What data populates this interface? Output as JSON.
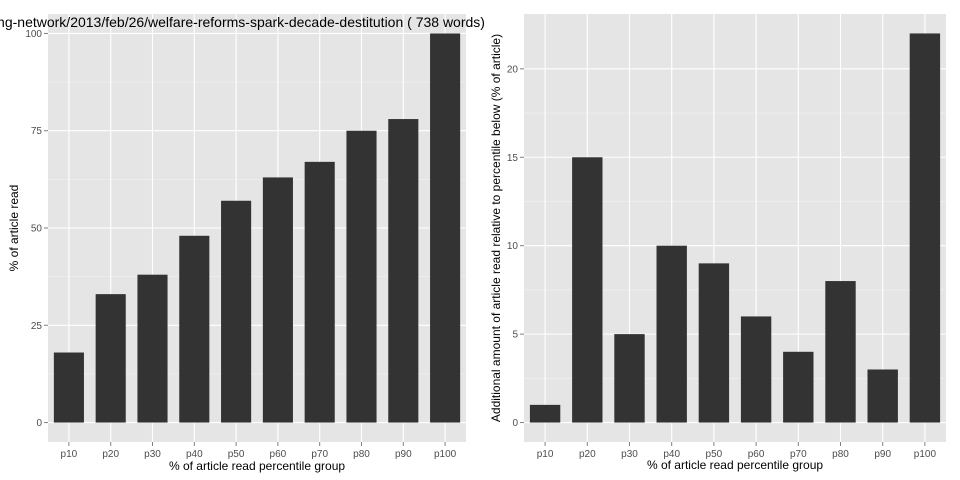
{
  "chart_data": [
    {
      "type": "bar",
      "title": "ng-network/2013/feb/26/welfare-reforms-spark-decade-destitution ( 738 words)",
      "xlabel": "% of article read percentile group",
      "ylabel": "% of article read",
      "categories": [
        "p10",
        "p20",
        "p30",
        "p40",
        "p50",
        "p60",
        "p70",
        "p80",
        "p90",
        "p100"
      ],
      "values": [
        18,
        33,
        38,
        48,
        57,
        63,
        67,
        75,
        78,
        100
      ],
      "ylim": [
        -5,
        105
      ],
      "yticks": [
        0,
        25,
        50,
        75,
        100
      ],
      "grid": true,
      "bar_color": "#333333",
      "panel_color": "#e5e5e5"
    },
    {
      "type": "bar",
      "title": "",
      "xlabel": "% of article read percentile group",
      "ylabel": "Additional amount of article read relative to percentile below (% of article)",
      "categories": [
        "p10",
        "p20",
        "p30",
        "p40",
        "p50",
        "p60",
        "p70",
        "p80",
        "p90",
        "p100"
      ],
      "values": [
        1,
        15,
        5,
        10,
        9,
        6,
        4,
        8,
        3,
        22
      ],
      "ylim": [
        -1.1,
        23.1
      ],
      "yticks": [
        0,
        5,
        10,
        15,
        20
      ],
      "grid": true,
      "bar_color": "#333333",
      "panel_color": "#e5e5e5"
    }
  ]
}
